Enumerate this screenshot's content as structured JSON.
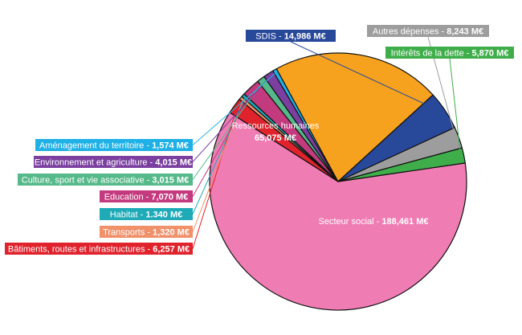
{
  "chart_data": {
    "type": "pie",
    "unit": "M€",
    "slices": [
      {
        "label": "Secteur social",
        "value": 188.461,
        "display": "188,461 M€",
        "color": "#f07cb4"
      },
      {
        "label": "Bâtiments, routes et infrastructures",
        "value": 6.257,
        "display": "6,257 M€",
        "color": "#e0222c"
      },
      {
        "label": "Transports",
        "value": 1.32,
        "display": "1,320 M€",
        "color": "#f0916a"
      },
      {
        "label": "Habitat",
        "value": 1.34,
        "display": "1.340 M€",
        "color": "#1faab8"
      },
      {
        "label": "Education",
        "value": 7.07,
        "display": "7,070 M€",
        "color": "#c43a7e"
      },
      {
        "label": "Culture, sport et vie associative",
        "value": 3.015,
        "display": "3,015 M€",
        "color": "#56b98a"
      },
      {
        "label": "Environnement et agriculture",
        "value": 4.015,
        "display": "4,015 M€",
        "color": "#7b3fa0"
      },
      {
        "label": "Aménagement du territoire",
        "value": 1.574,
        "display": "1,574 M€",
        "color": "#1fb1e6"
      },
      {
        "label": "Ressources humaines",
        "value": 65.075,
        "display": "65,075 M€",
        "color": "#f7a21e"
      },
      {
        "label": "SDIS",
        "value": 14.986,
        "display": "14,986 M€",
        "color": "#28489a"
      },
      {
        "label": "Autres dépenses",
        "value": 8.243,
        "display": "8,243 M€",
        "color": "#9d9d9d"
      },
      {
        "label": "Intérêts de la dette",
        "value": 5.87,
        "display": "5,870 M€",
        "color": "#3fae4a"
      }
    ]
  }
}
